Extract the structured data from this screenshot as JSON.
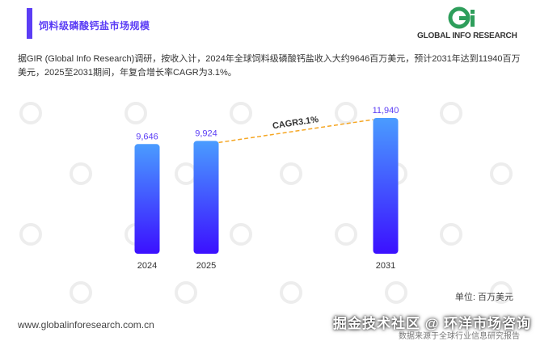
{
  "header": {
    "title": "饲料级磷酸钙盐市场规模",
    "logo_text": "GLOBAL INFO RESEARCH",
    "accent_color": "#5b3df5"
  },
  "description": "据GIR (Global Info Research)调研，按收入计，2024年全球饲料级磷酸钙盐收入大约9646百万美元，预计2031年达到11940百万美元，2025至2031期间，年复合增长率CAGR为3.1%。",
  "chart_data": {
    "type": "bar",
    "categories": [
      "2024",
      "2025",
      "2031"
    ],
    "values": [
      9646,
      9924,
      11940
    ],
    "value_labels": [
      "9,646",
      "9,924",
      "11,940"
    ],
    "annotation": "CAGR3.1%",
    "unit": "单位: 百万美元",
    "bar_gradient": [
      "#4a9cff",
      "#3b10ff"
    ],
    "value_label_color": "#5b3df5",
    "trend_line_color": "#f5a623"
  },
  "footer": {
    "url": "www.globalinforesearch.com.cn",
    "banner": "掘金技术社区 @ 环洋市场咨询",
    "sub": "数据来源于全球行业信息研究报告"
  }
}
